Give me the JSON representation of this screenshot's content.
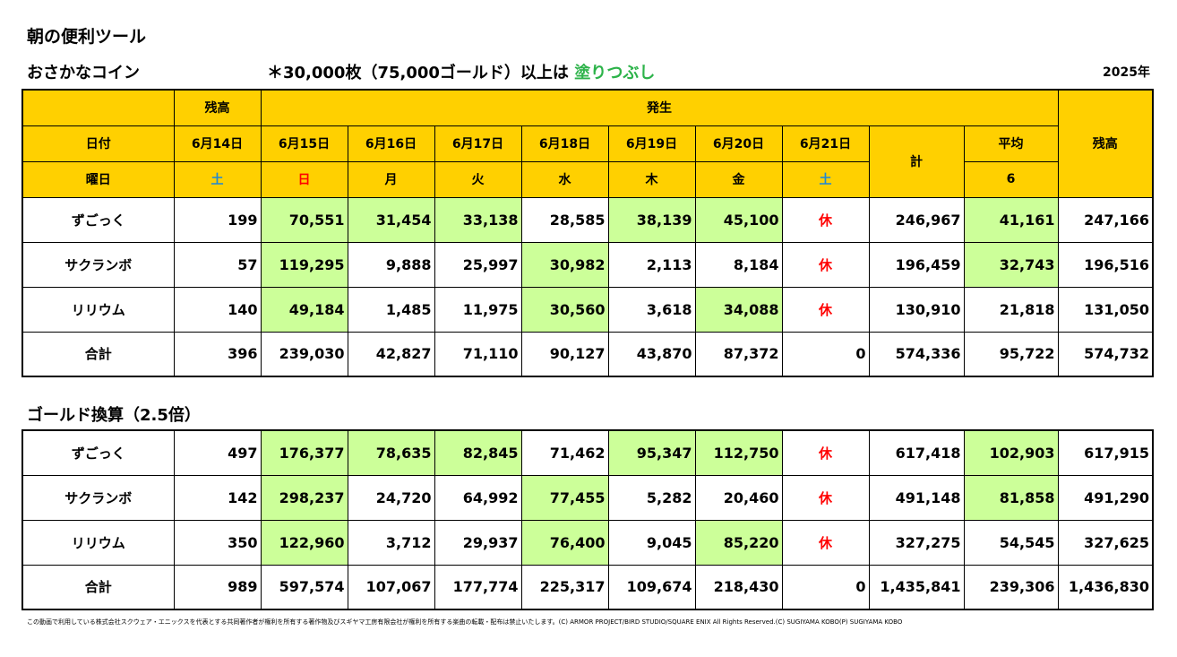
{
  "title": "朝の便利ツール",
  "coins_section_title": "おさかなコイン",
  "note_prefix": "＊30,000枚（75,000ゴールド）以上は ",
  "note_highlight": "塗りつぶし",
  "year": "2025年",
  "gold_section_title": "ゴールド換算（2.5倍）",
  "headers": {
    "balance_top": "残高",
    "occurrence": "発生",
    "balance_right": "残高",
    "date_label": "日付",
    "weekday_label": "曜日",
    "prev_date": "6月14日",
    "prev_weekday": "土",
    "dates": [
      "6月15日",
      "6月16日",
      "6月17日",
      "6月18日",
      "6月19日",
      "6月20日",
      "6月21日"
    ],
    "weekdays": [
      "日",
      "月",
      "火",
      "水",
      "木",
      "金",
      "土"
    ],
    "total": "計",
    "average": "平均",
    "average_days": "6"
  },
  "rest_label": "休",
  "coins_table": {
    "rows": [
      {
        "name": "ずごっく",
        "start": "199",
        "days": [
          "70,551",
          "31,454",
          "33,138",
          "28,585",
          "38,139",
          "45,100"
        ],
        "highlight": [
          true,
          true,
          true,
          false,
          true,
          true
        ],
        "total": "246,967",
        "average": "41,161",
        "average_highlight": true,
        "balance": "247,166"
      },
      {
        "name": "サクランボ",
        "start": "57",
        "days": [
          "119,295",
          "9,888",
          "25,997",
          "30,982",
          "2,113",
          "8,184"
        ],
        "highlight": [
          true,
          false,
          false,
          true,
          false,
          false
        ],
        "total": "196,459",
        "average": "32,743",
        "average_highlight": true,
        "balance": "196,516"
      },
      {
        "name": "リリウム",
        "start": "140",
        "days": [
          "49,184",
          "1,485",
          "11,975",
          "30,560",
          "3,618",
          "34,088"
        ],
        "highlight": [
          true,
          false,
          false,
          true,
          false,
          true
        ],
        "total": "130,910",
        "average": "21,818",
        "average_highlight": false,
        "balance": "131,050"
      }
    ],
    "sum": {
      "name": "合計",
      "start": "396",
      "days": [
        "239,030",
        "42,827",
        "71,110",
        "90,127",
        "43,870",
        "87,372",
        "0"
      ],
      "total": "574,336",
      "average": "95,722",
      "balance": "574,732"
    }
  },
  "gold_table": {
    "rows": [
      {
        "name": "ずごっく",
        "start": "497",
        "days": [
          "176,377",
          "78,635",
          "82,845",
          "71,462",
          "95,347",
          "112,750"
        ],
        "highlight": [
          true,
          true,
          true,
          false,
          true,
          true
        ],
        "total": "617,418",
        "average": "102,903",
        "average_highlight": true,
        "balance": "617,915"
      },
      {
        "name": "サクランボ",
        "start": "142",
        "days": [
          "298,237",
          "24,720",
          "64,992",
          "77,455",
          "5,282",
          "20,460"
        ],
        "highlight": [
          true,
          false,
          false,
          true,
          false,
          false
        ],
        "total": "491,148",
        "average": "81,858",
        "average_highlight": true,
        "balance": "491,290"
      },
      {
        "name": "リリウム",
        "start": "350",
        "days": [
          "122,960",
          "3,712",
          "29,937",
          "76,400",
          "9,045",
          "85,220"
        ],
        "highlight": [
          true,
          false,
          false,
          true,
          false,
          true
        ],
        "total": "327,275",
        "average": "54,545",
        "average_highlight": false,
        "balance": "327,625"
      }
    ],
    "sum": {
      "name": "合計",
      "start": "989",
      "days": [
        "597,574",
        "107,067",
        "177,774",
        "225,317",
        "109,674",
        "218,430",
        "0"
      ],
      "total": "1,435,841",
      "average": "239,306",
      "balance": "1,436,830"
    }
  },
  "colors": {
    "header_bg": "#ffd000",
    "highlight_bg": "#ccff99",
    "sunday": "#ff0000",
    "saturday": "#1e88d6",
    "rest": "#ff0000",
    "note_green": "#2db34a"
  },
  "footer": "この動画で利用している株式会社スクウェア・エニックスを代表とする共同著作者が権利を所有する著作物及びスギヤマ工房有限会社が権利を所有する楽曲の転載・配布は禁止いたします。(C) ARMOR PROJECT/BIRD STUDIO/SQUARE ENIX All Rights Reserved.(C) SUGIYAMA KOBO(P) SUGIYAMA KOBO"
}
